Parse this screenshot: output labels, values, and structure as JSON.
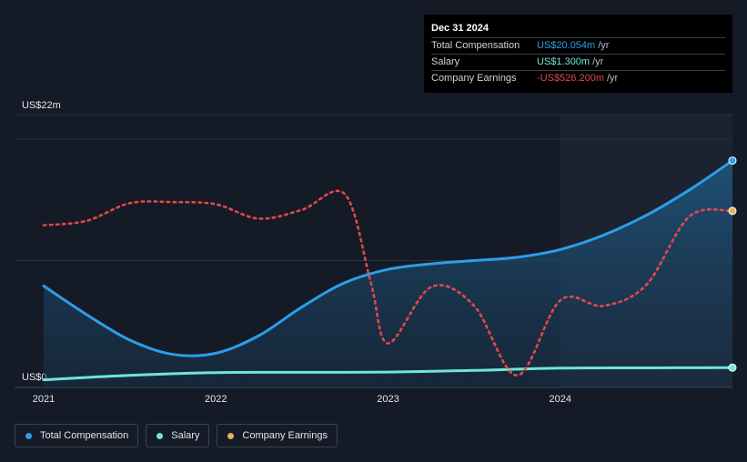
{
  "tooltip": {
    "date": "Dec 31 2024",
    "rows": [
      {
        "label": "Total Compensation",
        "value": "US$20.054m",
        "unit": "/yr",
        "color": "#2d9ee8"
      },
      {
        "label": "Salary",
        "value": "US$1.300m",
        "unit": "/yr",
        "color": "#6fe6d6"
      },
      {
        "label": "Company Earnings",
        "value": "-US$526.200m",
        "unit": "/yr",
        "color": "#e04a4a"
      }
    ]
  },
  "legend": [
    {
      "label": "Total Compensation",
      "color": "#2d9ee8"
    },
    {
      "label": "Salary",
      "color": "#6fe6d6"
    },
    {
      "label": "Company Earnings",
      "color": "#e8b25a"
    }
  ],
  "chart_data": {
    "type": "line",
    "title": "",
    "xlabel": "",
    "ylabel": "",
    "y_axis_labels": [
      "US$22m",
      "US$0"
    ],
    "ylim": [
      0,
      22
    ],
    "xlim": [
      2021.0,
      2025.0
    ],
    "x_ticks": [
      "2021",
      "2022",
      "2023",
      "2024"
    ],
    "x_tick_values": [
      2021,
      2022,
      2023,
      2024
    ],
    "forecast_shade_start": 2024.0,
    "series": [
      {
        "name": "Total Compensation",
        "color": "#2d9ee8",
        "area": true,
        "x": [
          2021.0,
          2021.25,
          2021.5,
          2021.75,
          2022.0,
          2022.25,
          2022.5,
          2022.75,
          2023.0,
          2023.25,
          2023.5,
          2023.75,
          2024.0,
          2024.25,
          2024.5,
          2024.75,
          2025.0
        ],
        "values": [
          8.7,
          6.1,
          3.8,
          2.5,
          2.6,
          4.2,
          6.8,
          9.0,
          10.2,
          10.7,
          11.0,
          11.3,
          12.0,
          13.3,
          15.1,
          17.4,
          20.054
        ]
      },
      {
        "name": "Salary",
        "color": "#6fe6d6",
        "area": false,
        "x": [
          2021.0,
          2021.5,
          2022.0,
          2022.5,
          2023.0,
          2023.5,
          2024.0,
          2024.5,
          2025.0
        ],
        "values": [
          0.2,
          0.6,
          0.85,
          0.87,
          0.9,
          1.05,
          1.25,
          1.28,
          1.3
        ]
      },
      {
        "name": "Company Earnings",
        "color": "#e04a4a",
        "end_marker_color": "#e8b25a",
        "dashed": true,
        "x": [
          2021.0,
          2021.25,
          2021.5,
          2021.75,
          2022.0,
          2022.25,
          2022.5,
          2022.75,
          2022.9,
          2023.0,
          2023.25,
          2023.5,
          2023.75,
          2024.0,
          2024.25,
          2024.5,
          2024.75,
          2025.0
        ],
        "values": [
          14.2,
          14.6,
          16.2,
          16.3,
          16.1,
          14.8,
          15.6,
          17.0,
          9.0,
          3.5,
          8.6,
          6.9,
          0.6,
          7.4,
          6.9,
          8.8,
          15.0,
          15.5
        ]
      }
    ]
  }
}
